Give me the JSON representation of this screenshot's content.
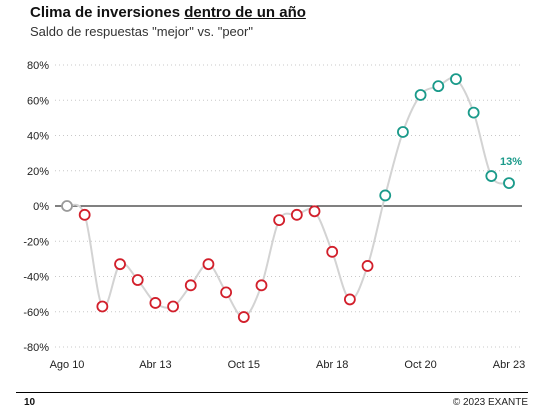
{
  "header": {
    "title_prefix": "Clima de inversiones ",
    "title_underlined": "dentro de un año",
    "subtitle": "Saldo de respuestas \"mejor\" vs. \"peor\""
  },
  "footer": {
    "page_number": "10",
    "copyright": "© 2023 EXANTE"
  },
  "colors": {
    "negative": "#d21f2b",
    "positive": "#1a9a8a",
    "neutral": "#9a9a9a",
    "line": "#d3d3d3",
    "zero_line": "#000000"
  },
  "chart_data": {
    "type": "line",
    "title": "Clima de inversiones dentro de un año",
    "subtitle": "Saldo de respuestas \"mejor\" vs. \"peor\"",
    "xlabel": "",
    "ylabel": "",
    "ylim": [
      -80,
      80
    ],
    "yticks": [
      80,
      60,
      40,
      20,
      0,
      -20,
      -40,
      -60,
      -80
    ],
    "ytick_labels": [
      "80%",
      "60%",
      "40%",
      "20%",
      "0%",
      "-20%",
      "-40%",
      "-60%",
      "-80%"
    ],
    "xtick_labels": [
      {
        "label": "Ago 10",
        "index": 0
      },
      {
        "label": "Abr 13",
        "index": 5
      },
      {
        "label": "Oct 15",
        "index": 10
      },
      {
        "label": "Abr 18",
        "index": 15
      },
      {
        "label": "Oct 20",
        "index": 20
      },
      {
        "label": "Abr 23",
        "index": 25
      }
    ],
    "grid": "horizontal-dotted",
    "series": [
      {
        "values": [
          0,
          -5,
          -57,
          -33,
          -42,
          -55,
          -57,
          -45,
          -33,
          -49,
          -63,
          -45,
          -8,
          -5,
          -3,
          -26,
          -53,
          -34,
          6,
          42,
          63,
          68,
          72,
          53,
          17,
          13
        ]
      }
    ],
    "annotation": {
      "text": "13%",
      "index": 25
    }
  }
}
